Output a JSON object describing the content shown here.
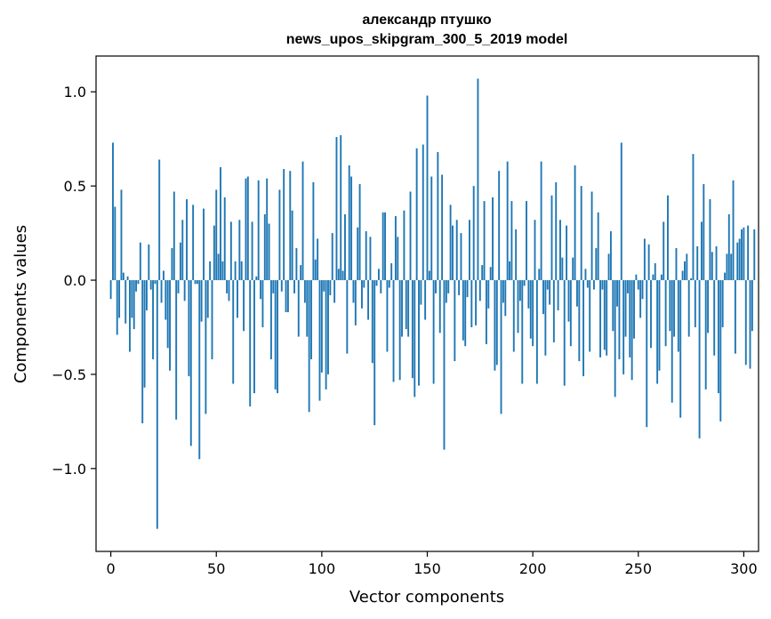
{
  "chart_data": {
    "type": "bar",
    "title": "александр птушко",
    "subtitle": "news_upos_skipgram_300_5_2019 model",
    "xlabel": "Vector components",
    "ylabel": "Components values",
    "xlim": [
      -7,
      307
    ],
    "ylim": [
      -1.44,
      1.19
    ],
    "xticks": [
      0,
      50,
      100,
      150,
      200,
      250,
      300
    ],
    "yticks": [
      -1.0,
      -0.5,
      0.0,
      0.5,
      1.0
    ],
    "ytick_labels": [
      "−1.0",
      "−0.5",
      "0.0",
      "0.5",
      "1.0"
    ],
    "bar_color": "#1f77b4",
    "grid": false,
    "series": [
      {
        "values": [
          -0.1,
          0.73,
          0.39,
          -0.29,
          -0.2,
          0.48,
          0.04,
          -0.23,
          0.02,
          -0.38,
          -0.2,
          -0.26,
          -0.06,
          -0.02,
          0.2,
          -0.76,
          -0.57,
          -0.16,
          0.19,
          -0.05,
          -0.42,
          -0.02,
          -1.32,
          0.64,
          -0.12,
          0.05,
          -0.21,
          -0.36,
          -0.48,
          0.17,
          0.47,
          -0.74,
          -0.07,
          0.2,
          0.32,
          -0.11,
          0.43,
          -0.51,
          -0.88,
          0.4,
          -0.02,
          -0.02,
          -0.95,
          -0.22,
          0.38,
          -0.71,
          -0.2,
          0.1,
          -0.42,
          0.29,
          0.48,
          0.14,
          0.6,
          0.1,
          0.44,
          -0.07,
          -0.11,
          0.31,
          -0.55,
          0.1,
          -0.2,
          0.32,
          0.1,
          -0.27,
          0.54,
          0.55,
          -0.67,
          0.31,
          -0.6,
          0.02,
          0.53,
          -0.1,
          -0.25,
          0.35,
          0.54,
          0.3,
          -0.42,
          -0.07,
          -0.58,
          -0.6,
          0.48,
          -0.06,
          0.59,
          -0.17,
          -0.17,
          0.58,
          0.37,
          -0.07,
          0.17,
          -0.3,
          0.08,
          0.63,
          -0.12,
          -0.3,
          -0.7,
          -0.42,
          0.52,
          0.11,
          0.22,
          -0.64,
          -0.49,
          -0.06,
          -0.58,
          -0.5,
          -0.08,
          0.25,
          -0.12,
          0.76,
          0.06,
          0.77,
          0.05,
          0.35,
          -0.39,
          0.61,
          0.55,
          -0.12,
          -0.24,
          0.28,
          0.51,
          -0.15,
          -0.04,
          0.26,
          -0.21,
          0.23,
          -0.44,
          -0.77,
          -0.03,
          0.06,
          -0.07,
          0.36,
          0.36,
          -0.38,
          -0.04,
          0.09,
          -0.54,
          0.34,
          0.23,
          -0.53,
          -0.3,
          0.37,
          -0.26,
          -0.3,
          0.47,
          -0.52,
          -0.62,
          0.7,
          -0.56,
          -0.13,
          0.72,
          -0.21,
          0.98,
          0.05,
          0.55,
          -0.55,
          -0.07,
          0.68,
          -0.28,
          0.56,
          -0.9,
          -0.12,
          -0.07,
          0.4,
          0.29,
          -0.43,
          0.32,
          -0.08,
          0.25,
          -0.32,
          -0.35,
          -0.09,
          0.32,
          -0.25,
          0.5,
          -0.24,
          1.07,
          -0.11,
          0.08,
          0.42,
          -0.34,
          -0.15,
          0.07,
          0.44,
          -0.48,
          -0.45,
          0.58,
          -0.71,
          -0.12,
          -0.19,
          0.63,
          0.1,
          0.42,
          -0.38,
          0.27,
          -0.28,
          -0.11,
          -0.55,
          -0.03,
          0.42,
          -0.15,
          -0.31,
          -0.35,
          0.32,
          -0.55,
          0.06,
          0.63,
          -0.18,
          -0.4,
          -0.05,
          -0.13,
          0.45,
          -0.33,
          0.52,
          -0.16,
          0.32,
          0.12,
          -0.56,
          0.29,
          -0.22,
          -0.35,
          0.12,
          0.61,
          -0.14,
          -0.43,
          0.5,
          -0.51,
          0.06,
          -0.04,
          -0.38,
          0.47,
          -0.05,
          0.17,
          0.36,
          -0.41,
          -0.05,
          -0.37,
          -0.4,
          0.14,
          0.26,
          -0.27,
          -0.62,
          -0.14,
          -0.42,
          0.73,
          -0.5,
          -0.3,
          -0.07,
          -0.41,
          -0.53,
          -0.31,
          0.03,
          -0.05,
          -0.2,
          -0.1,
          0.22,
          -0.78,
          0.19,
          -0.36,
          0.03,
          0.09,
          -0.55,
          -0.48,
          0.03,
          0.31,
          -0.35,
          0.45,
          -0.27,
          -0.65,
          -0.3,
          0.17,
          -0.38,
          -0.73,
          0.05,
          0.1,
          0.14,
          -0.3,
          0.01,
          0.67,
          -0.25,
          0.18,
          -0.84,
          0.31,
          0.51,
          -0.58,
          -0.28,
          0.43,
          0.15,
          -0.4,
          0.18,
          -0.6,
          -0.75,
          -0.25,
          0.04,
          0.14,
          0.35,
          0.14,
          0.53,
          -0.39,
          0.2,
          0.22,
          0.27,
          0.28,
          -0.45,
          0.29,
          -0.47,
          -0.27,
          0.27
        ]
      }
    ]
  }
}
